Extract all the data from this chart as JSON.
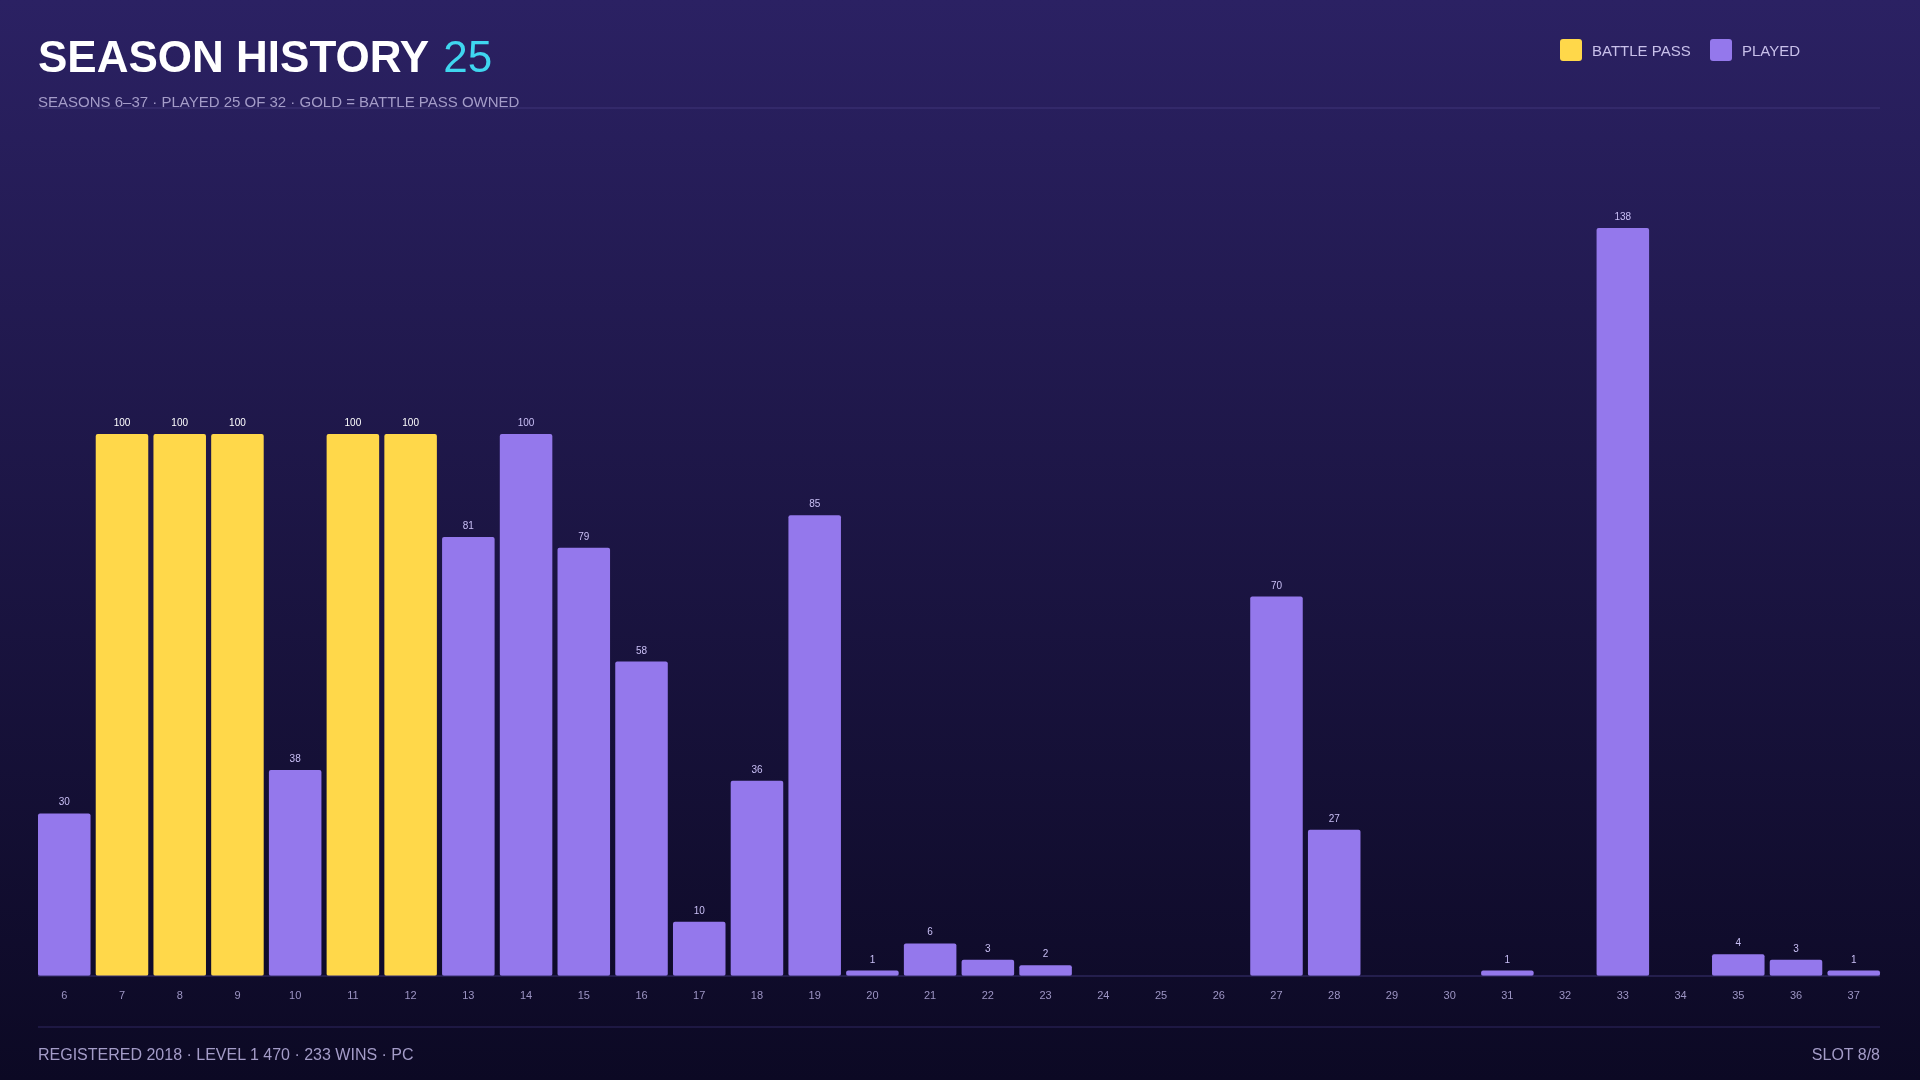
{
  "chart_data": {
    "type": "bar",
    "title": "SEASON HISTORY 25",
    "subtitle": "SEASONS 6–37  ·  PLAYED 25 OF 32  ·  GOLD = BATTLE PASS OWNED",
    "categories": [
      "6",
      "7",
      "8",
      "9",
      "10",
      "11",
      "12",
      "13",
      "14",
      "15",
      "16",
      "17",
      "18",
      "19",
      "20",
      "21",
      "22",
      "23",
      "24",
      "25",
      "26",
      "27",
      "28",
      "29",
      "30",
      "31",
      "32",
      "33",
      "34",
      "35",
      "36",
      "37"
    ],
    "series": [
      {
        "name": "BATTLE PASS",
        "color": "#ffd84a",
        "values": [
          null,
          100,
          100,
          100,
          null,
          100,
          100,
          null,
          null,
          null,
          null,
          null,
          null,
          null,
          null,
          null,
          null,
          null,
          null,
          null,
          null,
          null,
          null,
          null,
          null,
          null,
          null,
          null,
          null,
          null,
          null,
          null
        ],
        "value_labels": [
          null,
          "100",
          "100",
          "100",
          null,
          "100",
          "100",
          null,
          null,
          null,
          null,
          null,
          null,
          null,
          null,
          null,
          null,
          null,
          null,
          null,
          null,
          null,
          null,
          null,
          null,
          null,
          null,
          null,
          null,
          null,
          null,
          null
        ]
      },
      {
        "name": "PLAYED",
        "color": "#9478ec",
        "values": [
          30,
          null,
          null,
          null,
          38,
          null,
          null,
          81,
          100,
          79,
          58,
          10,
          36,
          85,
          1,
          6,
          3,
          2,
          0,
          0,
          0,
          70,
          27,
          0,
          0,
          1,
          0,
          138,
          0,
          4,
          3,
          1
        ],
        "value_labels": [
          "30",
          null,
          null,
          null,
          "38",
          null,
          null,
          "81",
          "100",
          "79",
          "58",
          "10",
          "36",
          "85",
          "1",
          "6",
          "3",
          "2",
          null,
          null,
          null,
          "70",
          "27",
          null,
          null,
          "1",
          null,
          "138",
          null,
          "4",
          "3",
          "1"
        ]
      }
    ],
    "legend": "top right",
    "annotations": [
      "REGISTERED 2018  ·  LEVEL 1 470  ·  233 WINS  ·  PC",
      "SLOT 8/8"
    ]
  }
}
